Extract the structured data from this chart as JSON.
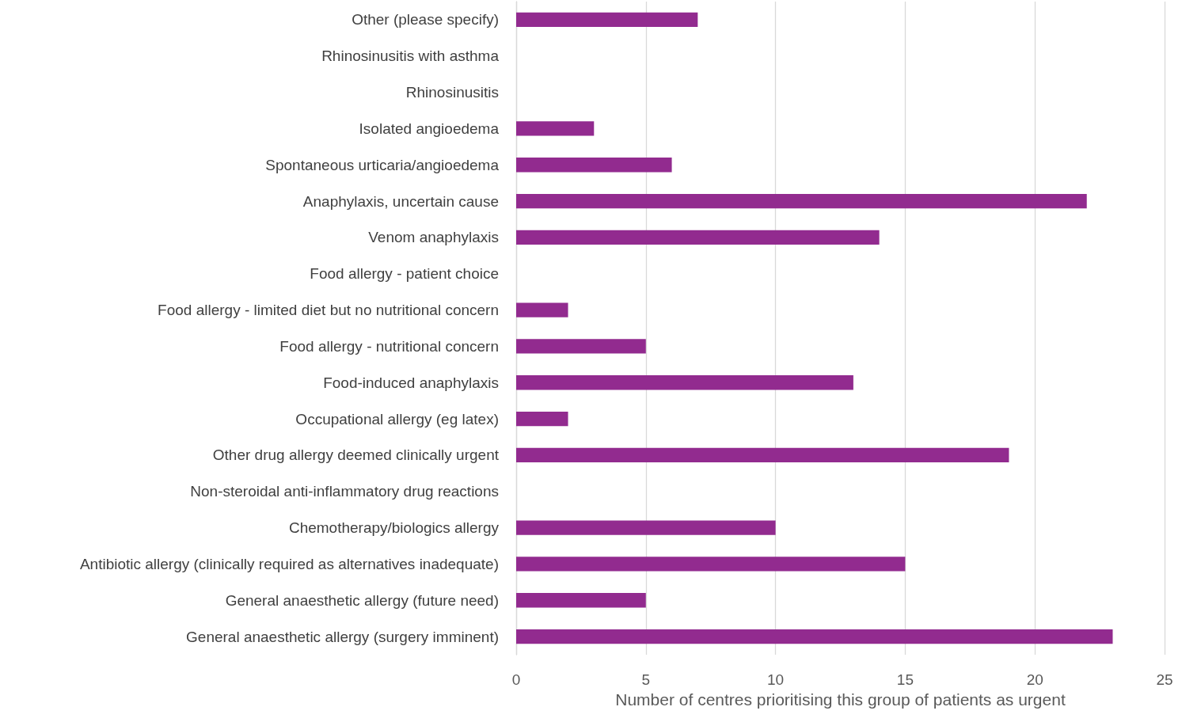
{
  "chart_data": {
    "type": "bar",
    "orientation": "horizontal",
    "xlabel": "Number of centres prioritising this group of patients as urgent",
    "categories": [
      "Other (please specify)",
      "Rhinosinusitis with asthma",
      "Rhinosinusitis",
      "Isolated angioedema",
      "Spontaneous urticaria/angioedema",
      "Anaphylaxis, uncertain cause",
      "Venom anaphylaxis",
      "Food allergy - patient choice",
      "Food allergy - limited diet but no nutritional concern",
      "Food allergy - nutritional concern",
      "Food-induced anaphylaxis",
      "Occupational allergy (eg latex)",
      "Other drug allergy deemed clinically urgent",
      "Non-steroidal anti-inflammatory drug reactions",
      "Chemotherapy/biologics allergy",
      "Antibiotic allergy (clinically required as alternatives inadequate)",
      "General anaesthetic allergy (future need)",
      "General anaesthetic allergy (surgery imminent)"
    ],
    "values": [
      7,
      0,
      0,
      3,
      6,
      22,
      14,
      0,
      2,
      5,
      13,
      2,
      19,
      0,
      10,
      15,
      5,
      23
    ],
    "color": "#922b8f",
    "xlim": [
      0,
      25
    ],
    "xticks": [
      0,
      5,
      10,
      15,
      20,
      25
    ],
    "grid": "x"
  }
}
